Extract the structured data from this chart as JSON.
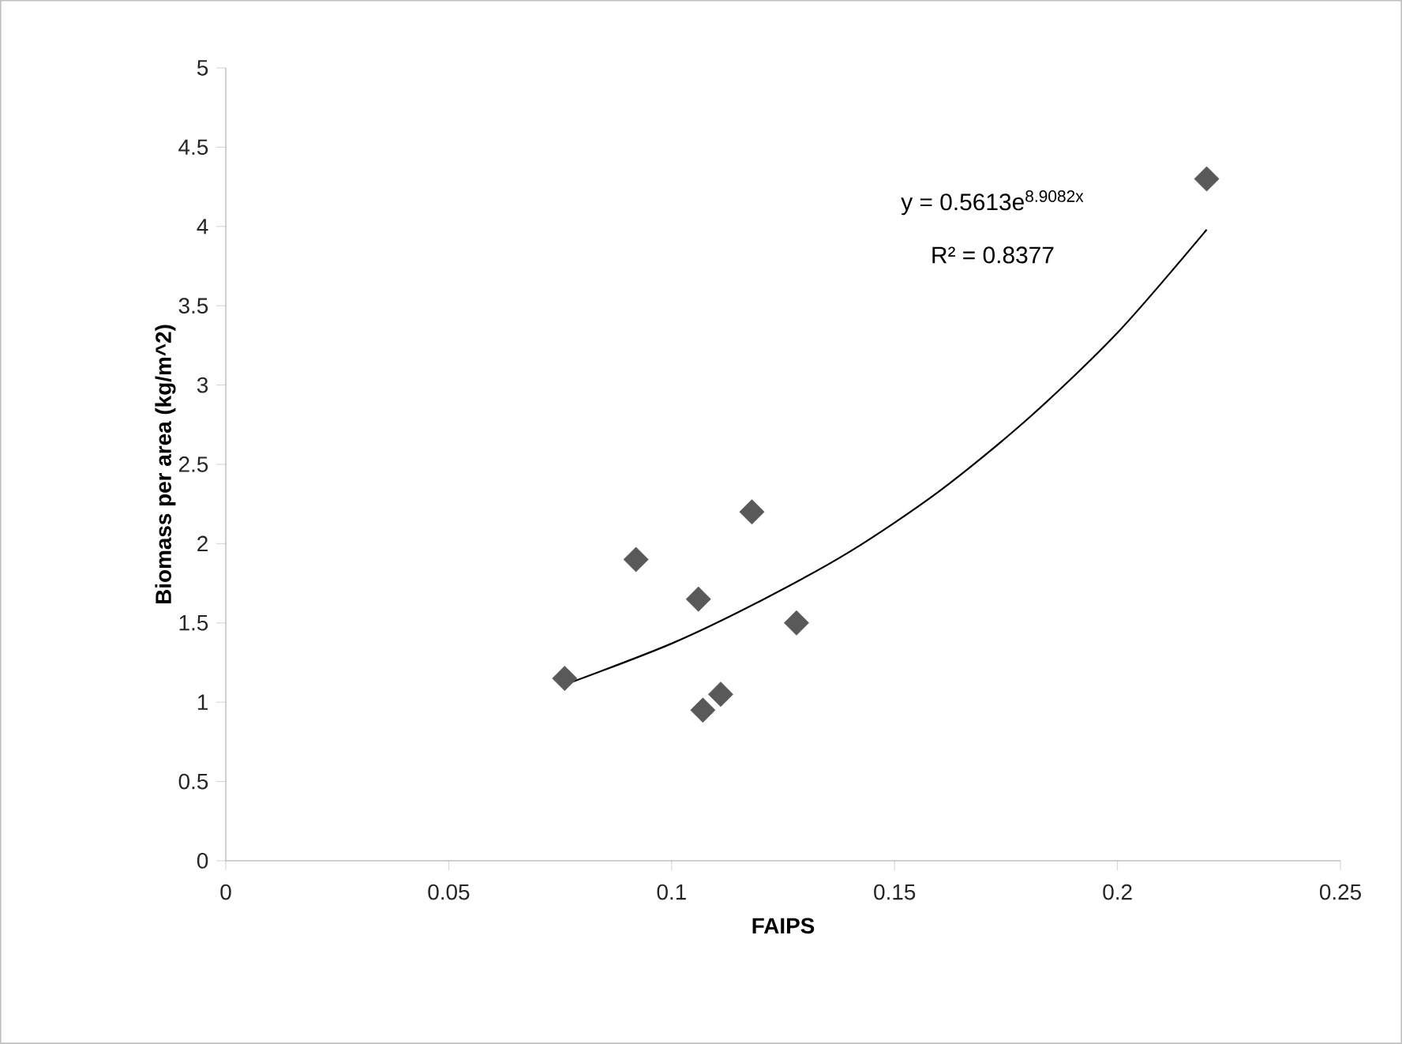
{
  "chart_data": {
    "type": "scatter",
    "xlabel": "FAIPS",
    "ylabel": "Biomass per area (kg/m^2)",
    "xlim": [
      0,
      0.25
    ],
    "xticks": [
      0,
      0.05,
      0.1,
      0.15,
      0.2,
      0.25
    ],
    "ylim": [
      0,
      5
    ],
    "yticks": [
      0,
      0.5,
      1,
      1.5,
      2,
      2.5,
      3,
      3.5,
      4,
      4.5,
      5
    ],
    "grid": false,
    "marker": "diamond",
    "series": [
      {
        "color": "#595959",
        "x": [
          0.076,
          0.092,
          0.106,
          0.107,
          0.111,
          0.118,
          0.128,
          0.22
        ],
        "values": [
          1.15,
          1.9,
          1.65,
          0.95,
          1.05,
          2.2,
          1.5,
          4.3
        ]
      },
      {
        "type": "line",
        "color": "#000000",
        "marker": "none",
        "line_style": "solid",
        "x": [
          0.076,
          0.1,
          0.12,
          0.14,
          0.16,
          0.18,
          0.2,
          0.22
        ],
        "values": [
          1.11,
          1.37,
          1.64,
          1.95,
          2.33,
          2.79,
          3.33,
          3.98
        ]
      }
    ],
    "annotations": [
      "y = 0.5613e$^{8.9082x}$",
      "R² = 0.8377"
    ]
  }
}
